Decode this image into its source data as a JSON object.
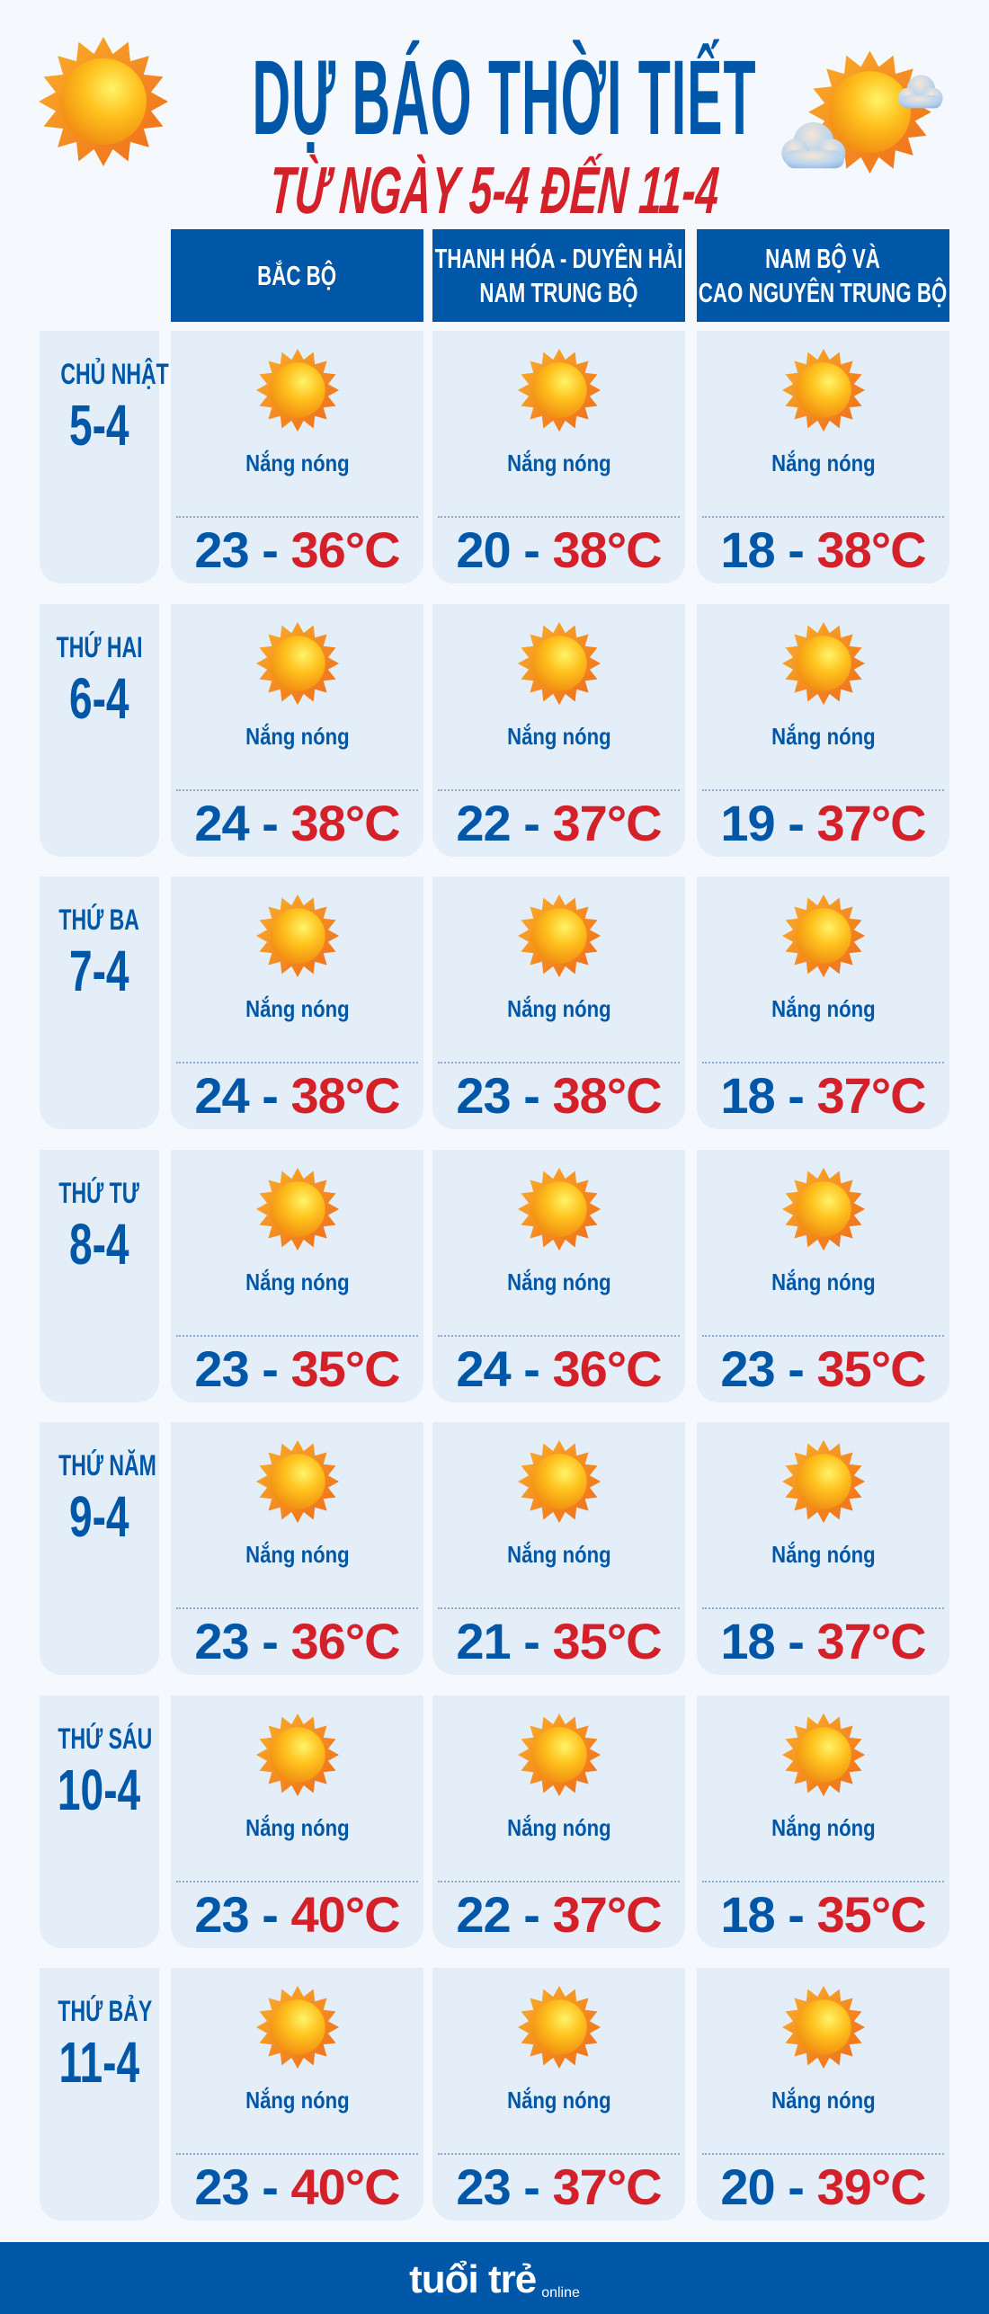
{
  "title": "DỰ BÁO THỜI TIẾT",
  "subtitle": "TỪ NGÀY 5-4 ĐẾN 11-4",
  "colors": {
    "blue": "#0057A8",
    "red": "#D32029",
    "cell_bg": "#E3EEF9",
    "page_bg": "#F5F9FD"
  },
  "header_icons": [
    "sun-icon",
    "sun-with-clouds-icon"
  ],
  "regions": [
    "BẮC BỘ",
    "THANH HÓA - DUYÊN HẢI\nNAM TRUNG BỘ",
    "NAM BỘ VÀ\nCAO NGUYÊN TRUNG BỘ"
  ],
  "days": [
    {
      "name": "CHỦ NHẬT",
      "date": "5-4",
      "cells": [
        {
          "icon": "sun-icon",
          "condition": "Nắng nóng",
          "low": "23",
          "high": "36°C"
        },
        {
          "icon": "sun-icon",
          "condition": "Nắng nóng",
          "low": "20",
          "high": "38°C"
        },
        {
          "icon": "sun-icon",
          "condition": "Nắng nóng",
          "low": "18",
          "high": "38°C"
        }
      ]
    },
    {
      "name": "THỨ HAI",
      "date": "6-4",
      "cells": [
        {
          "icon": "sun-icon",
          "condition": "Nắng nóng",
          "low": "24",
          "high": "38°C"
        },
        {
          "icon": "sun-icon",
          "condition": "Nắng nóng",
          "low": "22",
          "high": "37°C"
        },
        {
          "icon": "sun-icon",
          "condition": "Nắng nóng",
          "low": "19",
          "high": "37°C"
        }
      ]
    },
    {
      "name": "THỨ BA",
      "date": "7-4",
      "cells": [
        {
          "icon": "sun-icon",
          "condition": "Nắng nóng",
          "low": "24",
          "high": "38°C"
        },
        {
          "icon": "sun-icon",
          "condition": "Nắng nóng",
          "low": "23",
          "high": "38°C"
        },
        {
          "icon": "sun-icon",
          "condition": "Nắng nóng",
          "low": "18",
          "high": "37°C"
        }
      ]
    },
    {
      "name": "THỨ TƯ",
      "date": "8-4",
      "cells": [
        {
          "icon": "sun-icon",
          "condition": "Nắng nóng",
          "low": "23",
          "high": "35°C"
        },
        {
          "icon": "sun-icon",
          "condition": "Nắng nóng",
          "low": "24",
          "high": "36°C"
        },
        {
          "icon": "sun-icon",
          "condition": "Nắng nóng",
          "low": "23",
          "high": "35°C"
        }
      ]
    },
    {
      "name": "THỨ NĂM",
      "date": "9-4",
      "cells": [
        {
          "icon": "sun-icon",
          "condition": "Nắng nóng",
          "low": "23",
          "high": "36°C"
        },
        {
          "icon": "sun-icon",
          "condition": "Nắng nóng",
          "low": "21",
          "high": "35°C"
        },
        {
          "icon": "sun-icon",
          "condition": "Nắng nóng",
          "low": "18",
          "high": "37°C"
        }
      ]
    },
    {
      "name": "THỨ SÁU",
      "date": "10-4",
      "cells": [
        {
          "icon": "sun-icon",
          "condition": "Nắng nóng",
          "low": "23",
          "high": "40°C"
        },
        {
          "icon": "sun-icon",
          "condition": "Nắng nóng",
          "low": "22",
          "high": "37°C"
        },
        {
          "icon": "sun-icon",
          "condition": "Nắng nóng",
          "low": "18",
          "high": "35°C"
        }
      ]
    },
    {
      "name": "THỨ BẢY",
      "date": "11-4",
      "cells": [
        {
          "icon": "sun-icon",
          "condition": "Nắng nóng",
          "low": "23",
          "high": "40°C"
        },
        {
          "icon": "sun-icon",
          "condition": "Nắng nóng",
          "low": "23",
          "high": "37°C"
        },
        {
          "icon": "sun-icon",
          "condition": "Nắng nóng",
          "low": "20",
          "high": "39°C"
        }
      ]
    }
  ],
  "footer": {
    "logo": "tuổi trẻ online"
  }
}
